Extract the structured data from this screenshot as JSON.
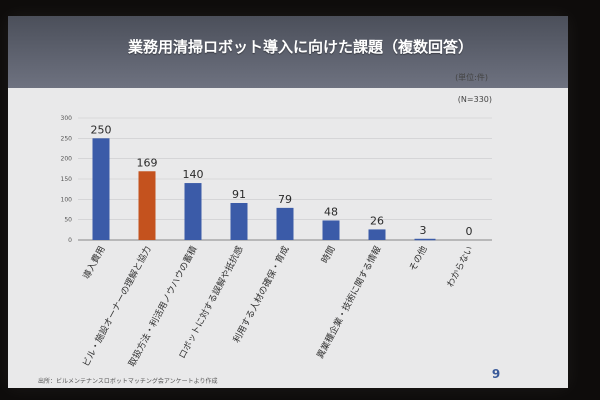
{
  "chart_data": {
    "type": "bar",
    "title": "業務用清掃ロボット導入に向けた課題（複数回答）",
    "unit_label": "(単位:件)",
    "n_label": "(N=330)",
    "ylim": [
      0,
      300
    ],
    "yticks": [
      0,
      50,
      100,
      150,
      200,
      250,
      300
    ],
    "categories": [
      "導入費用",
      "ビル・施設オーナーの理解と協力",
      "取扱方法・利活用ノウハウの蓄積",
      "ロボットに対する誤解や抵抗感",
      "利用する人材の確保・育成",
      "時間",
      "異業種企業・技術に関する情報",
      "その他",
      "わからない"
    ],
    "values": [
      250,
      169,
      140,
      91,
      79,
      48,
      26,
      3,
      0
    ],
    "value_labels": [
      "250",
      "169",
      "140",
      "91",
      "79",
      "48",
      "26",
      "3",
      "0"
    ],
    "colors": [
      "#3b5ba8",
      "#c4521e",
      "#3b5ba8",
      "#3b5ba8",
      "#3b5ba8",
      "#3b5ba8",
      "#3b5ba8",
      "#3b5ba8",
      "#3b5ba8"
    ],
    "grid": true,
    "source": "出所：ビルメンテナンスロボットマッチング会アンケートより作成",
    "page_number": "9"
  }
}
